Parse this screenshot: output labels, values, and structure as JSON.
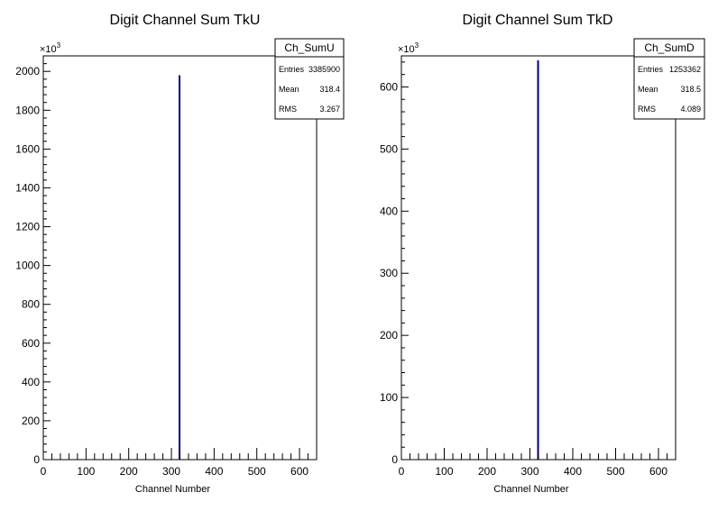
{
  "chart_data": [
    {
      "type": "bar",
      "title": "Digit Channel Sum TkU",
      "xlabel": "Channel Number",
      "ylabel": "",
      "y_multiplier_base": "×10",
      "y_multiplier_exp": "3",
      "xlim": [
        0,
        640
      ],
      "ylim": [
        0,
        2080
      ],
      "xticks": [
        0,
        100,
        200,
        300,
        400,
        500,
        600
      ],
      "yticks": [
        0,
        200,
        400,
        600,
        800,
        1000,
        1200,
        1400,
        1600,
        1800,
        2000
      ],
      "bars": [
        {
          "x": 319,
          "value": 1980
        }
      ],
      "bar_color": "#000080",
      "stats": {
        "name": "Ch_SumU",
        "rows": [
          {
            "key": "Entries",
            "value": "3385900"
          },
          {
            "key": "Mean",
            "value": "318.4"
          },
          {
            "key": "RMS",
            "value": "3.267"
          }
        ]
      },
      "grid": false,
      "stats_placement": "top-right"
    },
    {
      "type": "bar",
      "title": "Digit Channel Sum TkD",
      "xlabel": "Channel Number",
      "ylabel": "",
      "y_multiplier_base": "×10",
      "y_multiplier_exp": "3",
      "xlim": [
        0,
        640
      ],
      "ylim": [
        0,
        650
      ],
      "xticks": [
        0,
        100,
        200,
        300,
        400,
        500,
        600
      ],
      "yticks": [
        0,
        100,
        200,
        300,
        400,
        500,
        600
      ],
      "bars": [
        {
          "x": 319,
          "value": 643
        }
      ],
      "bar_color": "#000080",
      "stats": {
        "name": "Ch_SumD",
        "rows": [
          {
            "key": "Entries",
            "value": "1253362"
          },
          {
            "key": "Mean",
            "value": "318.5"
          },
          {
            "key": "RMS",
            "value": "4.089"
          }
        ]
      },
      "grid": false,
      "stats_placement": "top-right"
    }
  ]
}
